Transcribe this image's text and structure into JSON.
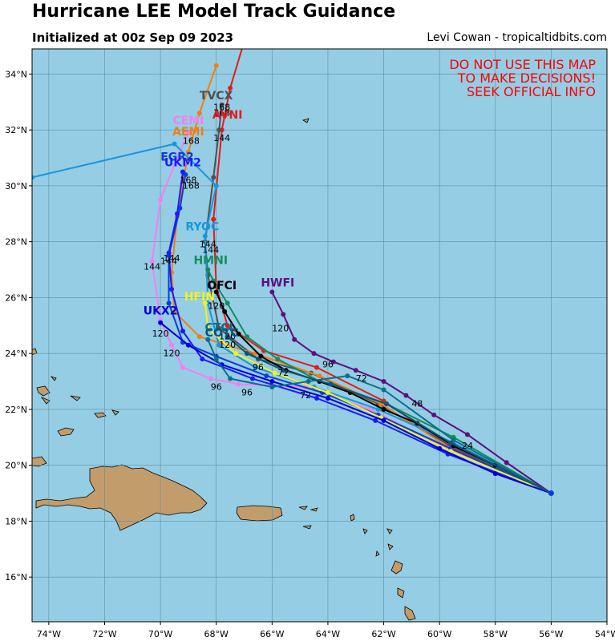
{
  "header": {
    "title": "Hurricane LEE Model Track Guidance",
    "subtitle": "Initialized at 00z Sep 09 2023",
    "credit": "Levi Cowan - tropicaltidbits.com"
  },
  "warning": [
    "DO NOT USE THIS MAP",
    "TO MAKE DECISIONS!",
    "SEEK OFFICIAL INFO"
  ],
  "colors": {
    "ocean": "#95cde4",
    "land": "#c29d6b",
    "grid": "#5f8fa1",
    "warning": "#ff0000"
  },
  "map": {
    "lon_range": [
      -74.6,
      -54.0
    ],
    "lat_range": [
      14.4,
      34.9
    ],
    "lon_ticks": [
      {
        "value": -74,
        "label": "74°W"
      },
      {
        "value": -72,
        "label": "72°W"
      },
      {
        "value": -70,
        "label": "70°W"
      },
      {
        "value": -68,
        "label": "68°W"
      },
      {
        "value": -66,
        "label": "66°W"
      },
      {
        "value": -64,
        "label": "64°W"
      },
      {
        "value": -62,
        "label": "62°W"
      },
      {
        "value": -60,
        "label": "60°W"
      },
      {
        "value": -58,
        "label": "58°W"
      },
      {
        "value": -56,
        "label": "56°W"
      },
      {
        "value": -54,
        "label": "54°W"
      }
    ],
    "lat_ticks": [
      {
        "value": 16,
        "label": "16°N"
      },
      {
        "value": 18,
        "label": "18°N"
      },
      {
        "value": 20,
        "label": "20°N"
      },
      {
        "value": 22,
        "label": "22°N"
      },
      {
        "value": 24,
        "label": "24°N"
      },
      {
        "value": 26,
        "label": "26°N"
      },
      {
        "value": 28,
        "label": "28°N"
      },
      {
        "value": 30,
        "label": "30°N"
      },
      {
        "value": 32,
        "label": "32°N"
      },
      {
        "value": 34,
        "label": "34°N"
      }
    ]
  },
  "tracks": [
    {
      "name": "AVNI",
      "color": "#e21c1c",
      "label_lon": -67.6,
      "label_lat": 32.4,
      "points": [
        [
          -56.0,
          19.0
        ],
        [
          -59.5,
          20.6
        ],
        [
          -62.0,
          22.3
        ],
        [
          -64.4,
          23.5
        ],
        [
          -66.3,
          24.1
        ],
        [
          -67.6,
          25.0
        ],
        [
          -68.0,
          26.4
        ],
        [
          -68.1,
          28.8
        ],
        [
          -67.8,
          32.0
        ],
        [
          -67.5,
          33.5
        ],
        [
          -66.9,
          35.5
        ]
      ],
      "hour_labels": [
        {
          "text": "144",
          "lon": -67.8,
          "lat": 31.6
        },
        {
          "text": "168",
          "lon": -67.8,
          "lat": 32.5
        }
      ]
    },
    {
      "name": "TVCX",
      "color": "#505050",
      "label_lon": -68.0,
      "label_lat": 33.1,
      "points": [
        [
          -56.0,
          19.0
        ],
        [
          -59.6,
          20.7
        ],
        [
          -62.2,
          22.2
        ],
        [
          -64.6,
          23.3
        ],
        [
          -66.5,
          23.8
        ],
        [
          -67.9,
          24.9
        ],
        [
          -68.3,
          26.8
        ],
        [
          -68.4,
          28.0
        ],
        [
          -68.1,
          30.3
        ],
        [
          -67.9,
          32.0
        ],
        [
          -67.8,
          32.9
        ]
      ],
      "hour_labels": [
        {
          "text": "168",
          "lon": -67.8,
          "lat": 32.7
        }
      ]
    },
    {
      "name": "CEMI",
      "color": "#f27ff2",
      "label_lon": -69.0,
      "label_lat": 32.2,
      "points": [
        [
          -56.0,
          19.0
        ],
        [
          -59.7,
          20.6
        ],
        [
          -62.5,
          22.0
        ],
        [
          -64.8,
          22.8
        ],
        [
          -67.2,
          22.9
        ],
        [
          -68.2,
          23.1
        ],
        [
          -69.2,
          23.5
        ],
        [
          -69.6,
          24.3
        ],
        [
          -70.0,
          25.2
        ],
        [
          -70.3,
          27.3
        ],
        [
          -70.0,
          29.5
        ],
        [
          -69.4,
          31.0
        ],
        [
          -69.0,
          31.9
        ]
      ],
      "hour_labels": [
        {
          "text": "120",
          "lon": -69.6,
          "lat": 23.9
        },
        {
          "text": "96",
          "lon": -68.0,
          "lat": 22.7
        },
        {
          "text": "144",
          "lon": -70.3,
          "lat": 27.0
        }
      ]
    },
    {
      "name": "AEMI",
      "color": "#f07f12",
      "label_lon": -69.0,
      "label_lat": 31.8,
      "points": [
        [
          -56.0,
          19.0
        ],
        [
          -59.6,
          20.6
        ],
        [
          -62.1,
          22.2
        ],
        [
          -64.3,
          23.2
        ],
        [
          -66.6,
          24.0
        ],
        [
          -68.6,
          24.6
        ],
        [
          -69.5,
          25.5
        ],
        [
          -69.6,
          26.9
        ],
        [
          -69.4,
          28.9
        ],
        [
          -69.0,
          31.2
        ],
        [
          -68.6,
          32.6
        ],
        [
          -68.0,
          34.3
        ]
      ],
      "hour_labels": [
        {
          "text": "168",
          "lon": -68.9,
          "lat": 31.5
        },
        {
          "text": "144",
          "lon": -69.6,
          "lat": 27.3
        }
      ]
    },
    {
      "name": "EGR2",
      "color": "#0d3dd6",
      "label_lon": -69.4,
      "label_lat": 30.9,
      "points": [
        [
          -56.0,
          19.0
        ],
        [
          -59.6,
          20.6
        ],
        [
          -62.2,
          21.8
        ],
        [
          -64.2,
          22.6
        ],
        [
          -66.2,
          23.2
        ],
        [
          -68.0,
          23.9
        ],
        [
          -69.2,
          24.4
        ],
        [
          -69.7,
          25.8
        ],
        [
          -69.7,
          27.5
        ],
        [
          -69.3,
          29.2
        ],
        [
          -69.1,
          30.4
        ]
      ],
      "hour_labels": [
        {
          "text": "168",
          "lon": -69.0,
          "lat": 30.1
        },
        {
          "text": "144",
          "lon": -69.7,
          "lat": 27.2
        }
      ]
    },
    {
      "name": "UKM2",
      "color": "#1a1aff",
      "label_lon": -69.2,
      "label_lat": 30.7,
      "points": [
        [
          -56.0,
          19.0
        ],
        [
          -59.7,
          20.4
        ],
        [
          -62.3,
          21.6
        ],
        [
          -64.4,
          22.4
        ],
        [
          -66.7,
          23.1
        ],
        [
          -68.5,
          23.8
        ],
        [
          -69.2,
          24.8
        ],
        [
          -69.6,
          26.3
        ],
        [
          -69.7,
          27.6
        ],
        [
          -69.4,
          29.0
        ],
        [
          -69.2,
          30.5
        ]
      ],
      "hour_labels": [
        {
          "text": "168",
          "lon": -68.9,
          "lat": 29.9
        }
      ]
    },
    {
      "name": "RYOC",
      "color": "#1a96dc",
      "label_lon": -68.5,
      "label_lat": 28.4,
      "points": [
        [
          -56.0,
          19.0
        ],
        [
          -59.5,
          20.8
        ],
        [
          -62.2,
          22.0
        ],
        [
          -64.5,
          22.8
        ],
        [
          -66.6,
          23.5
        ],
        [
          -67.9,
          24.3
        ],
        [
          -68.3,
          25.8
        ],
        [
          -68.4,
          28.2
        ],
        [
          -68.0,
          30.0
        ],
        [
          -69.5,
          31.5
        ],
        [
          -74.6,
          30.3
        ]
      ],
      "extra": [
        [
          -68.4,
          28.2
        ],
        [
          -74.6,
          30.3
        ]
      ],
      "hour_labels": [
        {
          "text": "144",
          "lon": -68.3,
          "lat": 27.8
        }
      ]
    },
    {
      "name": "HMNI",
      "color": "#138d5a",
      "label_lon": -68.2,
      "label_lat": 27.2,
      "points": [
        [
          -56.0,
          19.0
        ],
        [
          -59.5,
          21.0
        ],
        [
          -61.9,
          22.2
        ],
        [
          -64.3,
          23.0
        ],
        [
          -65.8,
          23.8
        ],
        [
          -66.9,
          24.6
        ],
        [
          -67.6,
          25.8
        ],
        [
          -68.1,
          26.6
        ],
        [
          -68.3,
          27.0
        ]
      ],
      "hour_labels": [
        {
          "text": "144",
          "lon": -68.2,
          "lat": 27.6
        }
      ]
    },
    {
      "name": "HWFI",
      "color": "#5e0f7e",
      "label_lon": -65.8,
      "label_lat": 26.4,
      "points": [
        [
          -56.0,
          19.0
        ],
        [
          -57.6,
          20.1
        ],
        [
          -59.0,
          21.1
        ],
        [
          -60.2,
          21.8
        ],
        [
          -61.2,
          22.5
        ],
        [
          -62.0,
          23.0
        ],
        [
          -63.0,
          23.4
        ],
        [
          -63.8,
          23.7
        ],
        [
          -64.5,
          24.0
        ],
        [
          -65.2,
          24.5
        ],
        [
          -65.6,
          25.4
        ],
        [
          -66.0,
          26.2
        ]
      ],
      "hour_labels": [
        {
          "text": "120",
          "lon": -65.7,
          "lat": 24.8
        },
        {
          "text": "96",
          "lon": -64.0,
          "lat": 23.5
        },
        {
          "text": "72",
          "lon": -62.8,
          "lat": 23.0
        },
        {
          "text": "48",
          "lon": -60.8,
          "lat": 22.1
        },
        {
          "text": "24",
          "lon": -59.0,
          "lat": 20.6
        }
      ]
    },
    {
      "name": "OFCI",
      "color": "#000000",
      "label_lon": -67.8,
      "label_lat": 26.3,
      "points": [
        [
          -56.0,
          19.0
        ],
        [
          -58.0,
          20.0
        ],
        [
          -59.5,
          20.7
        ],
        [
          -60.8,
          21.5
        ],
        [
          -62.0,
          22.0
        ],
        [
          -63.2,
          22.6
        ],
        [
          -64.3,
          23.0
        ],
        [
          -65.5,
          23.4
        ],
        [
          -66.4,
          23.9
        ],
        [
          -67.2,
          24.7
        ],
        [
          -67.7,
          25.5
        ],
        [
          -68.0,
          26.2
        ]
      ],
      "hour_labels": [
        {
          "text": "120",
          "lon": -68.0,
          "lat": 25.6
        },
        {
          "text": "96",
          "lon": -66.5,
          "lat": 23.4
        },
        {
          "text": "72",
          "lon": -65.6,
          "lat": 23.2
        }
      ]
    },
    {
      "name": "HFIN",
      "color": "#f3f31a",
      "label_lon": -68.6,
      "label_lat": 25.9,
      "points": [
        [
          -56.0,
          19.0
        ],
        [
          -59.6,
          20.5
        ],
        [
          -62.1,
          21.7
        ],
        [
          -64.0,
          22.6
        ],
        [
          -65.9,
          23.3
        ],
        [
          -67.3,
          24.0
        ],
        [
          -68.3,
          24.9
        ],
        [
          -68.4,
          25.8
        ]
      ],
      "hour_labels": [
        {
          "text": "120",
          "lon": -67.6,
          "lat": 24.5
        }
      ]
    },
    {
      "name": "UKX2",
      "color": "#0000d8",
      "label_lon": -70.0,
      "label_lat": 25.4,
      "points": [
        [
          -56.0,
          19.0
        ],
        [
          -58.0,
          19.7
        ],
        [
          -60.0,
          20.6
        ],
        [
          -62.0,
          21.6
        ],
        [
          -64.0,
          22.4
        ],
        [
          -66.0,
          23.0
        ],
        [
          -67.8,
          23.6
        ],
        [
          -69.0,
          24.3
        ],
        [
          -70.0,
          25.1
        ]
      ],
      "hour_labels": [
        {
          "text": "120",
          "lon": -70.0,
          "lat": 24.6
        }
      ]
    },
    {
      "name": "CTCI",
      "color": "#0e6e8c",
      "label_lon": -67.9,
      "label_lat": 24.8,
      "points": [
        [
          -56.0,
          19.0
        ],
        [
          -59.5,
          20.9
        ],
        [
          -62.0,
          22.7
        ],
        [
          -63.3,
          23.2
        ],
        [
          -64.7,
          23.0
        ],
        [
          -66.0,
          22.8
        ],
        [
          -67.5,
          23.1
        ],
        [
          -68.0,
          23.8
        ],
        [
          -68.3,
          24.5
        ]
      ],
      "hour_labels": [
        {
          "text": "96",
          "lon": -66.9,
          "lat": 22.5
        },
        {
          "text": "72",
          "lon": -64.8,
          "lat": 22.4
        }
      ]
    },
    {
      "name": "COTC",
      "color": "#07587a",
      "label_lon": -67.8,
      "label_lat": 24.6,
      "points": [
        [
          -56.0,
          19.0
        ],
        [
          -59.6,
          20.8
        ],
        [
          -61.9,
          22.2
        ],
        [
          -63.9,
          22.9
        ],
        [
          -65.6,
          23.4
        ],
        [
          -66.9,
          24.0
        ],
        [
          -67.6,
          24.6
        ]
      ],
      "hour_labels": [
        {
          "text": "120",
          "lon": -67.6,
          "lat": 24.2
        }
      ]
    }
  ],
  "land": {
    "hispaniola_cuba_label": ""
  }
}
